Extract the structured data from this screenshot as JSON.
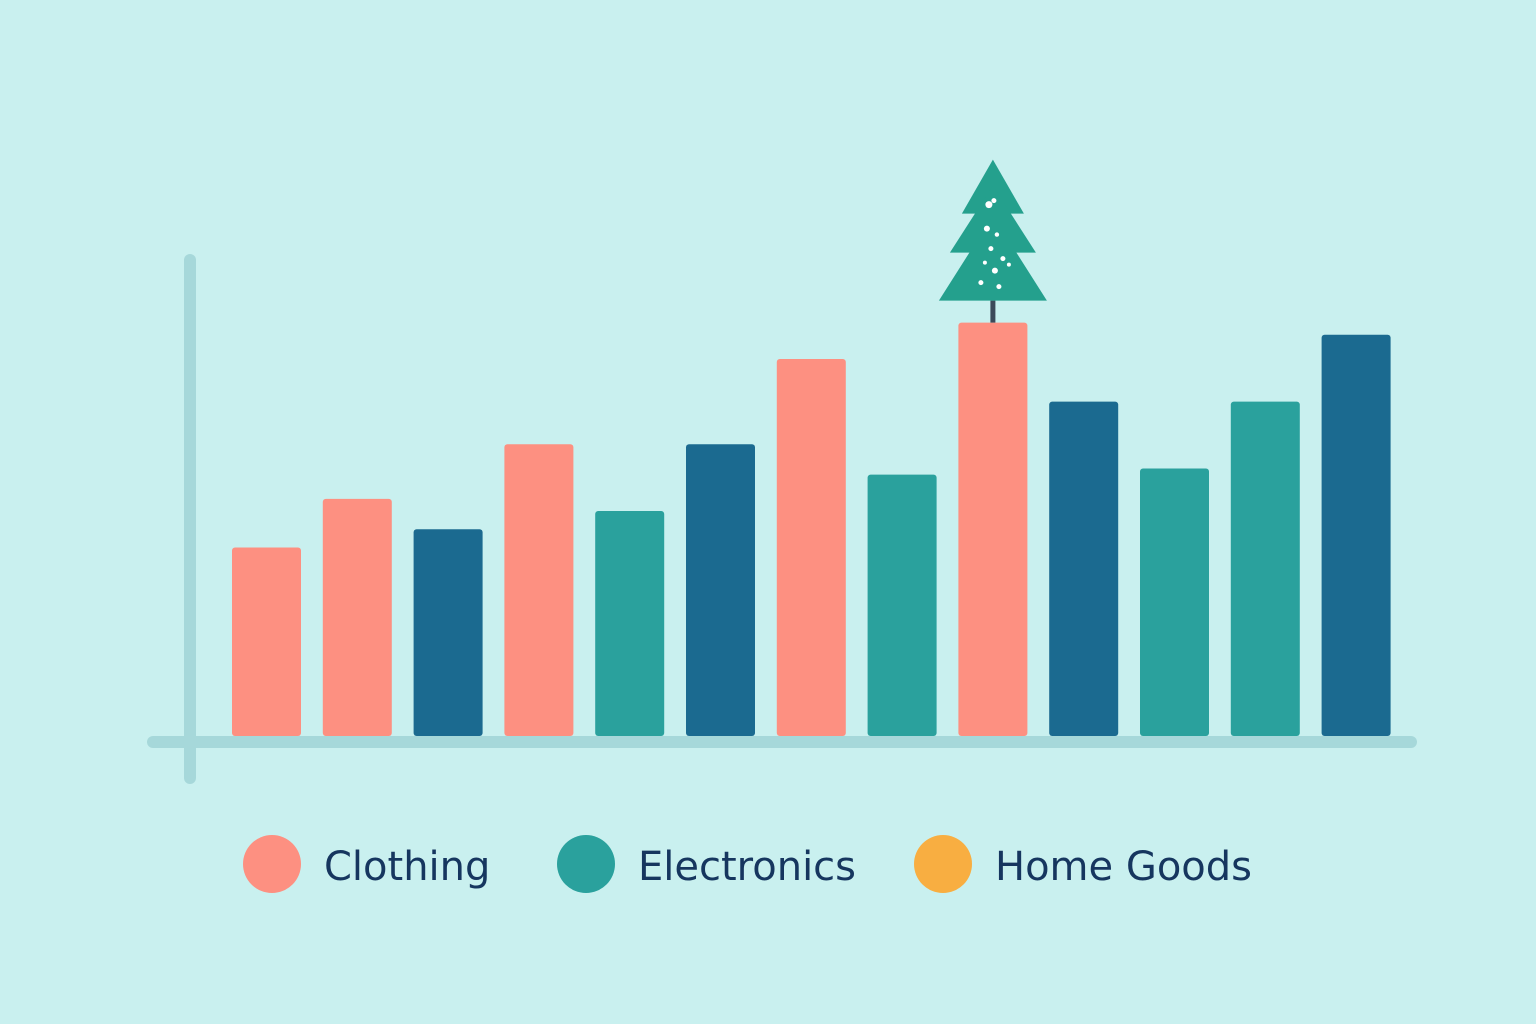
{
  "chart_data": {
    "type": "bar",
    "categories": [
      "",
      "",
      "",
      "",
      "",
      "",
      "",
      "",
      "",
      "",
      "",
      "",
      ""
    ],
    "values": [
      31,
      39,
      34,
      48,
      37,
      48,
      62,
      43,
      68,
      55,
      44,
      55,
      66
    ],
    "series_index": [
      0,
      0,
      2,
      0,
      1,
      2,
      0,
      1,
      0,
      2,
      1,
      1,
      2
    ],
    "ylim": [
      0,
      100
    ],
    "grid": false,
    "annotation_icon": "pine-tree-icon",
    "annotation_on_bar": 8
  },
  "legend": {
    "position": "bottom",
    "items": [
      {
        "label": "Clothing",
        "color": "#fd9081"
      },
      {
        "label": "Electronics",
        "color": "#2aa19d"
      },
      {
        "label": "Home Goods",
        "color": "#f8ae41"
      }
    ]
  },
  "colors": {
    "background": "#c9f0ef",
    "axis": "#a6d8da",
    "home_goods_bars": "#1b6a90",
    "tree": "#24a08d",
    "tree_trunk": "#3c4a5a",
    "legend_text": "#16365f"
  }
}
